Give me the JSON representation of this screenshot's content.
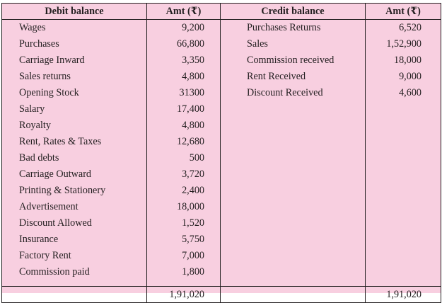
{
  "headers": {
    "debit": "Debit balance",
    "debit_amt": "Amt (₹)",
    "credit": "Credit balance",
    "credit_amt": "Amt (₹)"
  },
  "rows": [
    {
      "debit": "Wages",
      "debit_amt": "9,200",
      "credit": "Purchases Returns",
      "credit_amt": "6,520"
    },
    {
      "debit": "Purchases",
      "debit_amt": "66,800",
      "credit": "Sales",
      "credit_amt": "1,52,900"
    },
    {
      "debit": "Carriage Inward",
      "debit_amt": "3,350",
      "credit": "Commission received",
      "credit_amt": "18,000"
    },
    {
      "debit": "Sales returns",
      "debit_amt": "4,800",
      "credit": "Rent Received",
      "credit_amt": "9,000"
    },
    {
      "debit": "Opening Stock",
      "debit_amt": "31300",
      "credit": "Discount Received",
      "credit_amt": "4,600"
    },
    {
      "debit": "Salary",
      "debit_amt": "17,400",
      "credit": "",
      "credit_amt": ""
    },
    {
      "debit": "Royalty",
      "debit_amt": "4,800",
      "credit": "",
      "credit_amt": ""
    },
    {
      "debit": "Rent, Rates & Taxes",
      "debit_amt": "12,680",
      "credit": "",
      "credit_amt": ""
    },
    {
      "debit": "Bad debts",
      "debit_amt": "500",
      "credit": "",
      "credit_amt": ""
    },
    {
      "debit": "Carriage Outward",
      "debit_amt": "3,720",
      "credit": "",
      "credit_amt": ""
    },
    {
      "debit": "Printing & Stationery",
      "debit_amt": "2,400",
      "credit": "",
      "credit_amt": ""
    },
    {
      "debit": "Advertisement",
      "debit_amt": "18,000",
      "credit": "",
      "credit_amt": ""
    },
    {
      "debit": "Discount Allowed",
      "debit_amt": "1,520",
      "credit": "",
      "credit_amt": ""
    },
    {
      "debit": "Insurance",
      "debit_amt": "5,750",
      "credit": "",
      "credit_amt": ""
    },
    {
      "debit": "Factory Rent",
      "debit_amt": "7,000",
      "credit": "",
      "credit_amt": ""
    },
    {
      "debit": "Commission paid",
      "debit_amt": "1,800",
      "credit": "",
      "credit_amt": ""
    }
  ],
  "totals": {
    "debit_total": "1,91,020",
    "credit_total": "1,91,020"
  },
  "colors": {
    "background": "#f8cfe0",
    "border": "#231f20"
  }
}
